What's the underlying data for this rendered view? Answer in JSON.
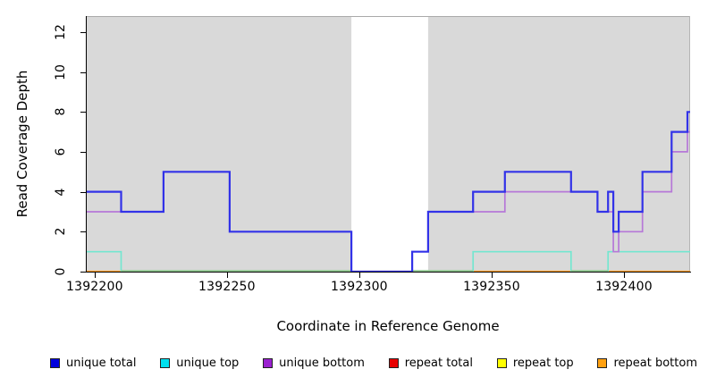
{
  "axes": {
    "xlabel": "Coordinate in Reference Genome",
    "ylabel": "Read Coverage Depth"
  },
  "chart_data": {
    "type": "line",
    "subtype": "step-coverage-plot",
    "title": "",
    "xlabel": "Coordinate in Reference Genome",
    "ylabel": "Read Coverage Depth",
    "xlim": [
      1392197,
      1392425
    ],
    "ylim": [
      0,
      12.8
    ],
    "xticks": [
      "1392200",
      "1392250",
      "1392300",
      "1392350",
      "1392400"
    ],
    "xtick_values": [
      1392200,
      1392250,
      1392300,
      1392350,
      1392400
    ],
    "yticks": [
      "0",
      "2",
      "4",
      "6",
      "8",
      "10",
      "12"
    ],
    "ytick_values": [
      0,
      2,
      4,
      6,
      8,
      10,
      12
    ],
    "grid": false,
    "plot_background": "#d9d9d9",
    "plot_top_border_color": "#a9a9a9",
    "plot_right_border_color": "#b5b5b5",
    "masked_region": {
      "x_start": 1392297,
      "x_end": 1392326,
      "fill": "#ffffff",
      "note": "white vertical band over full plot height (no data region)"
    },
    "series": [
      {
        "name": "unique total",
        "color": "#3232e8",
        "line_width": 2.2,
        "steps": [
          [
            1392197,
            4
          ],
          [
            1392210,
            3
          ],
          [
            1392226,
            5
          ],
          [
            1392251,
            2
          ],
          [
            1392297,
            0
          ],
          [
            1392320,
            1
          ],
          [
            1392326,
            3
          ],
          [
            1392343,
            4
          ],
          [
            1392355,
            5
          ],
          [
            1392380,
            4
          ],
          [
            1392390,
            3
          ],
          [
            1392394,
            4
          ],
          [
            1392396,
            2
          ],
          [
            1392398,
            3
          ],
          [
            1392407,
            5
          ],
          [
            1392418,
            7
          ],
          [
            1392424,
            8
          ]
        ]
      },
      {
        "name": "unique top",
        "color": "#74e6d0",
        "line_width": 1.7,
        "steps": [
          [
            1392197,
            1
          ],
          [
            1392210,
            0
          ],
          [
            1392343,
            1
          ],
          [
            1392380,
            0
          ],
          [
            1392394,
            1
          ]
        ]
      },
      {
        "name": "unique bottom",
        "color": "#b678d8",
        "line_width": 1.7,
        "steps": [
          [
            1392197,
            3
          ],
          [
            1392226,
            5
          ],
          [
            1392251,
            2
          ],
          [
            1392297,
            0
          ],
          [
            1392320,
            1
          ],
          [
            1392326,
            3
          ],
          [
            1392355,
            4
          ],
          [
            1392390,
            3
          ],
          [
            1392396,
            1
          ],
          [
            1392398,
            2
          ],
          [
            1392407,
            4
          ],
          [
            1392418,
            6
          ],
          [
            1392424,
            7
          ]
        ]
      },
      {
        "name": "repeat total",
        "color": "#e80000",
        "line_width": 1.7,
        "steps": [
          [
            1392197,
            0
          ]
        ]
      },
      {
        "name": "repeat top",
        "color": "#ffff00",
        "line_width": 1.7,
        "steps": [
          [
            1392197,
            0
          ]
        ]
      },
      {
        "name": "repeat bottom",
        "color": "#ff9d1e",
        "line_width": 2.2,
        "steps": [
          [
            1392197,
            0
          ]
        ]
      }
    ],
    "zero_line_overlap": {
      "color": "#8fc98f",
      "depth": 0,
      "segments": [
        [
          1392210,
          1392297
        ],
        [
          1392320,
          1392343
        ],
        [
          1392380,
          1392394
        ]
      ],
      "note": "pale green stretches of the depth-0 line where the unique-top line sits on the repeat-bottom line"
    },
    "draw_order": [
      "repeat total",
      "repeat top",
      "repeat bottom",
      "unique top",
      "__zero_overlap__",
      "unique bottom",
      "unique total"
    ]
  },
  "legend": {
    "items": [
      {
        "label": "unique total",
        "swatch_color": "#0000dd"
      },
      {
        "label": "unique top",
        "swatch_color": "#00e0ee"
      },
      {
        "label": "unique bottom",
        "swatch_color": "#9a20d0"
      },
      {
        "label": "repeat total",
        "swatch_color": "#e80000"
      },
      {
        "label": "repeat top",
        "swatch_color": "#ffff00"
      },
      {
        "label": "repeat bottom",
        "swatch_color": "#ffa010"
      }
    ]
  }
}
